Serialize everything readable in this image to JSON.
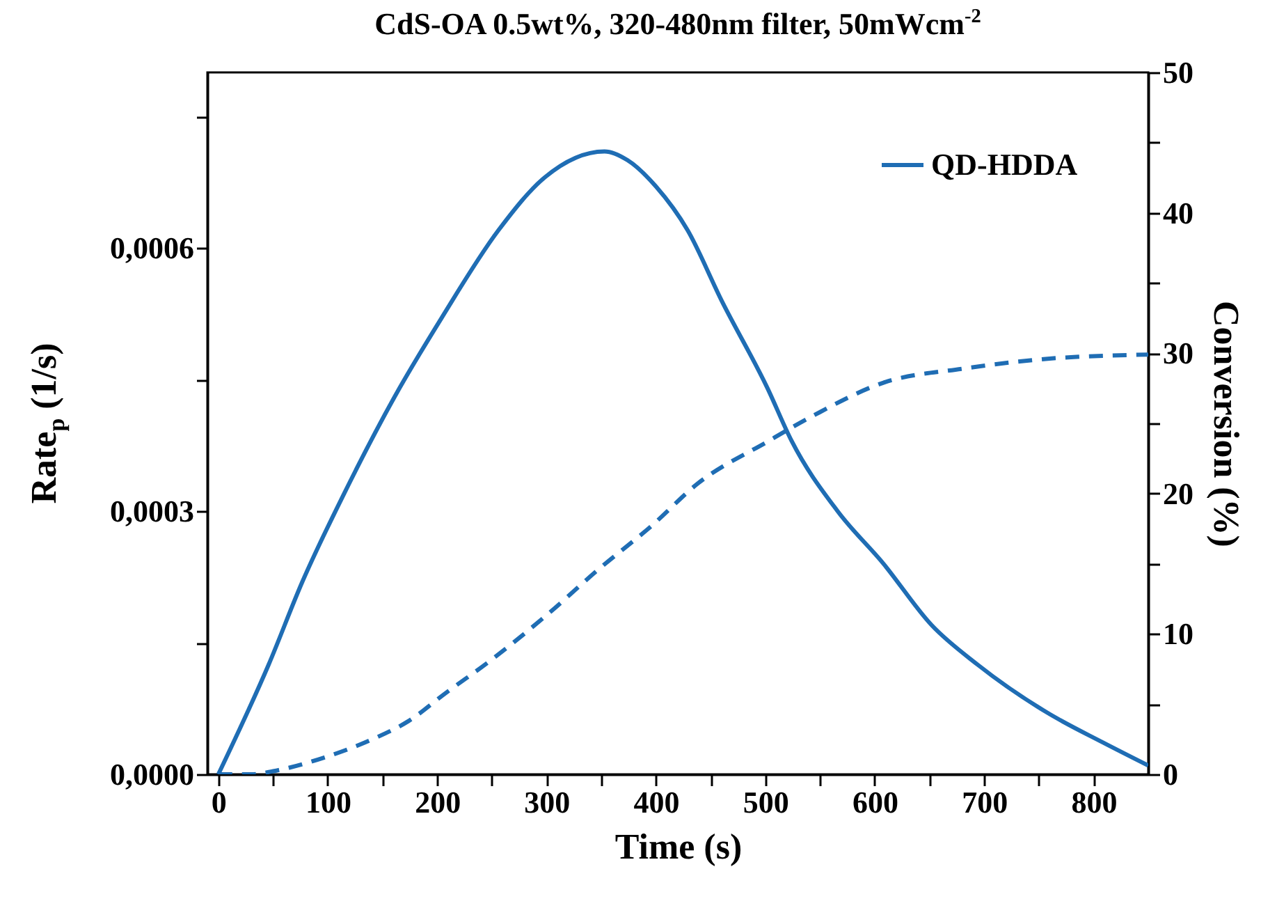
{
  "chart_data": {
    "type": "line",
    "title": "CdS-OA 0.5wt%, 320-480nm filter, 50mWcm$^{-2}$",
    "xlabel": "Time (s)",
    "ylabel": "Rate$_{p}$ (1/s)",
    "y2label": "Conversion (%)",
    "xlim": [
      -10,
      850
    ],
    "xticks": [
      0,
      {
        "value": 50,
        "label": null
      },
      100,
      {
        "value": 150,
        "label": null
      },
      200,
      {
        "value": 250,
        "label": null
      },
      300,
      {
        "value": 350,
        "label": null
      },
      400,
      {
        "value": 450,
        "label": null
      },
      500,
      {
        "value": 550,
        "label": null
      },
      600,
      {
        "value": 650,
        "label": null
      },
      700,
      {
        "value": 750,
        "label": null
      },
      800
    ],
    "ylim": [
      0,
      0.0008
    ],
    "yticks": [
      {
        "value": 0,
        "label": "0,0000"
      },
      {
        "value": 0.00015,
        "label": null
      },
      {
        "value": 0.0003,
        "label": "0,0003"
      },
      {
        "value": 0.00045,
        "label": null
      },
      {
        "value": 0.0006,
        "label": "0,0006"
      },
      {
        "value": 0.00075,
        "label": null
      }
    ],
    "y2lim": [
      0,
      50
    ],
    "y2ticks": [
      0,
      {
        "value": 5,
        "label": null
      },
      10,
      {
        "value": 15,
        "label": null
      },
      20,
      {
        "value": 25,
        "label": null
      },
      30,
      {
        "value": 35,
        "label": null
      },
      40,
      {
        "value": 45,
        "label": null
      },
      50
    ],
    "legend": "top right",
    "grid": false,
    "series": [
      {
        "name": "QD-HDDA",
        "color": "#1f6db4",
        "line_style": "solid",
        "x": [
          0,
          46,
          77,
          115,
          161,
          204,
          256,
          298,
          353,
          374,
          400,
          429,
          460,
          502,
          524,
          566,
          608,
          652,
          694,
          758,
          809,
          850
        ],
        "values": [
          0,
          0.000125,
          0.00022,
          0.00032,
          0.00043,
          0.00052,
          0.00062,
          0.00068,
          0.00071,
          0.0007,
          0.00067,
          0.00062,
          0.00054,
          0.00044,
          0.00038,
          0.0003,
          0.00024,
          0.00017,
          0.000125,
          7e-05,
          3.6e-05,
          1e-05
        ]
      },
      {
        "color": "#1f6db4",
        "line_style": "dashed",
        "axis": "y2",
        "x": [
          0,
          30,
          55,
          97,
          141,
          174,
          208,
          247,
          298,
          349,
          396,
          438,
          502,
          545,
          608,
          681,
          758,
          850
        ],
        "values": [
          0,
          0,
          0.3,
          1.2,
          2.5,
          3.8,
          5.8,
          8,
          11.2,
          14.7,
          17.7,
          20.7,
          23.7,
          25.6,
          27.9,
          28.9,
          29.6,
          29.9
        ]
      }
    ]
  }
}
